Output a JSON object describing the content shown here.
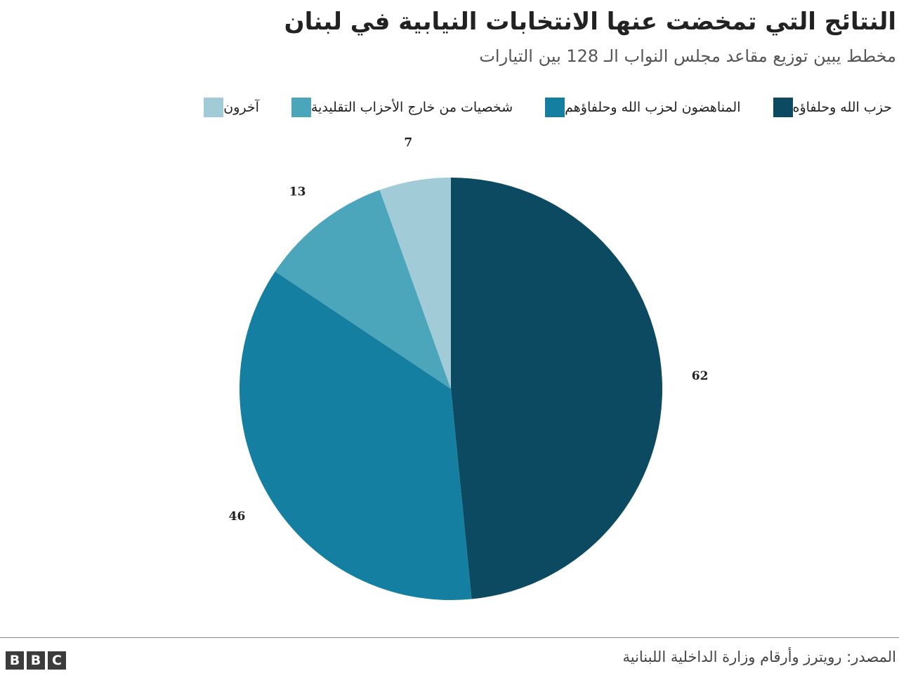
{
  "title": "النتائج التي تمخضت عنها الانتخابات النيابية في لبنان",
  "subtitle": "مخطط يبين توزيع مقاعد مجلس النواب الـ 128 بين التيارات",
  "legend": [
    {
      "label": "آخرون",
      "color": "#a2cbd8"
    },
    {
      "label": "شخصيات من خارج الأحزاب التقليدية",
      "color": "#4ba6bc"
    },
    {
      "label": "المناهضون لحزب الله وحلفاؤهم",
      "color": "#157fa1"
    },
    {
      "label": "حزب الله وحلفاؤه",
      "color": "#0b4a60"
    }
  ],
  "chart_data": {
    "type": "pie",
    "total": 128,
    "slices": [
      {
        "name": "حزب الله وحلفاؤه",
        "value": 62,
        "label": "62",
        "color": "#0b4a60"
      },
      {
        "name": "المناهضون لحزب الله وحلفاؤهم",
        "value": 46,
        "label": "46",
        "color": "#157fa1"
      },
      {
        "name": "شخصيات من خارج الأحزاب التقليدية",
        "value": 13,
        "label": "13",
        "color": "#4ba6bc"
      },
      {
        "name": "آخرون",
        "value": 7,
        "label": "7",
        "color": "#a2cbd8"
      }
    ]
  },
  "footer": {
    "source": "المصدر: رويترز وأرقام وزارة الداخلية اللبنانية",
    "logo_letters": [
      "B",
      "B",
      "C"
    ]
  }
}
